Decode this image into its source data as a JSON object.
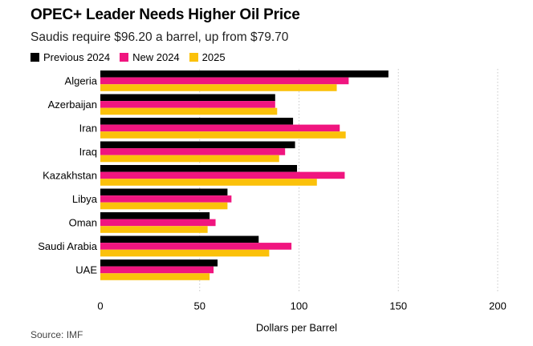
{
  "chart_data": {
    "type": "bar",
    "orientation": "horizontal",
    "title": "OPEC+ Leader Needs Higher Oil Price",
    "subtitle": "Saudis require $96.20 a barrel, up from $79.70",
    "xlabel": "Dollars per Barrel",
    "ylabel": "",
    "xlim": [
      0,
      200
    ],
    "xticks": [
      0,
      50,
      100,
      150,
      200
    ],
    "grid": true,
    "legend_position": "top-left",
    "categories": [
      "Algeria",
      "Azerbaijan",
      "Iran",
      "Iraq",
      "Kazakhstan",
      "Libya",
      "Oman",
      "Saudi Arabia",
      "UAE"
    ],
    "series": [
      {
        "name": "Previous 2024",
        "color": "#000000",
        "values": [
          145,
          88,
          97,
          98,
          99,
          64,
          55,
          79.7,
          59
        ]
      },
      {
        "name": "New 2024",
        "color": "#f0157f",
        "values": [
          125,
          88,
          120.5,
          93,
          123,
          66,
          58,
          96.2,
          57
        ]
      },
      {
        "name": "2025",
        "color": "#fbc10a",
        "values": [
          119,
          89,
          123.5,
          90,
          109,
          64,
          54,
          85,
          55
        ]
      }
    ],
    "source": "Source: IMF"
  }
}
